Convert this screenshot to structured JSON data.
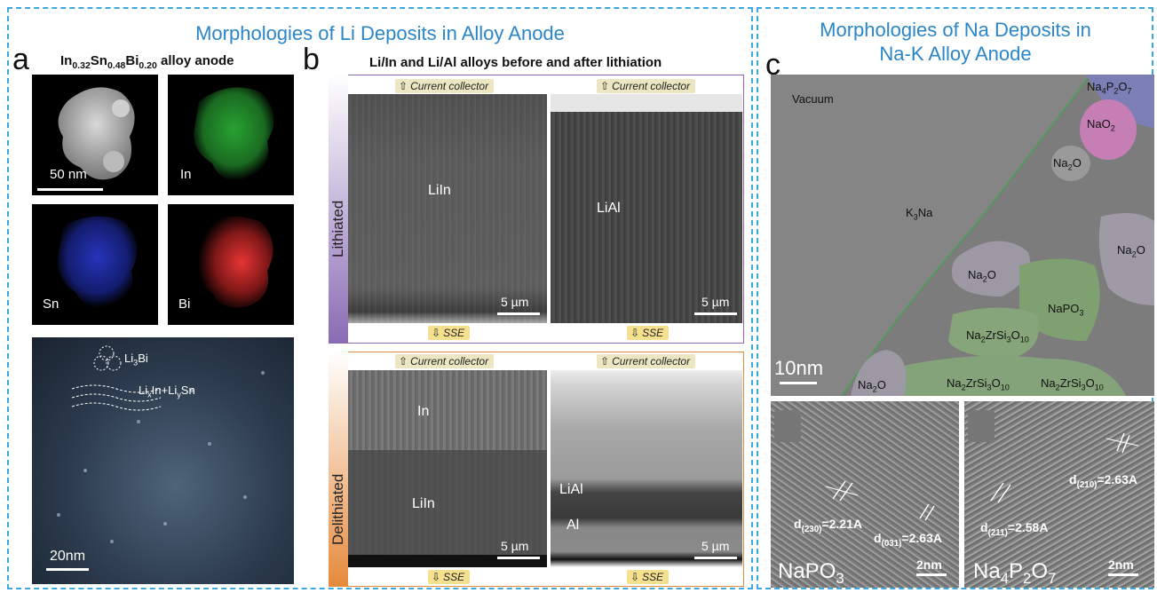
{
  "left_section": {
    "header": "Morphologies of Li Deposits in Alloy Anode"
  },
  "right_section": {
    "header_line1": "Morphologies of Na Deposits in",
    "header_line2": "Na-K Alloy Anode"
  },
  "panel_a": {
    "label": "a",
    "title_parts": [
      "In",
      "0.32",
      "Sn",
      "0.48",
      "Bi",
      "0.20",
      " alloy anode"
    ],
    "tiles": {
      "haadf_scale": "50 nm",
      "in": "In",
      "sn": "Sn",
      "bi": "Bi"
    },
    "hrtem": {
      "li3bi": [
        "Li",
        "3",
        "Bi"
      ],
      "lixin": [
        "Li",
        "x",
        "In+Li",
        "y",
        "Sn"
      ],
      "scale": "20nm"
    },
    "colors": {
      "in": "#2fbf3a",
      "sn": "#2a3ad0",
      "bi": "#d22a2a"
    }
  },
  "panel_b": {
    "label": "b",
    "title": "Li/In and Li/Al alloys before and after lithiation",
    "rows": [
      {
        "side_label": "Lithiated",
        "side_color": "#8a6bb4",
        "top_tag": "Current collector",
        "bottom_tag": "SSE",
        "left_phase": "LiIn",
        "right_phase": "LiAl",
        "scale_left": "5 µm",
        "scale_right": "5 µm"
      },
      {
        "side_label": "Delithiated",
        "side_color": "#e58a3c",
        "top_tag": "Current collector",
        "bottom_tag": "SSE",
        "left_phase_top": "In",
        "left_phase_bottom": "LiIn",
        "right_phase_top": "LiAl",
        "right_phase_bottom": "Al",
        "scale_left": "5 µm",
        "scale_right": "5 µm"
      }
    ]
  },
  "panel_c": {
    "label": "c",
    "regions": {
      "vacuum": "Vacuum",
      "k3na": [
        "K",
        "3",
        "Na"
      ],
      "na4p2o7": [
        "Na",
        "4",
        "P",
        "2",
        "O",
        "7"
      ],
      "nao2": [
        "NaO",
        "2"
      ],
      "na2o": [
        "Na",
        "2",
        "O"
      ],
      "napo3": [
        "NaPO",
        "3"
      ],
      "na2zrsi3o10": [
        "Na",
        "2",
        "ZrSi",
        "3",
        "O",
        "10"
      ]
    },
    "scale_main": "10nm",
    "lattice_left": {
      "d1": [
        "d",
        "(230)",
        "=2.21A"
      ],
      "d2": [
        "d",
        "(031)",
        "=2.63A"
      ],
      "phase": [
        "NaPO",
        "3"
      ],
      "scale": "2nm"
    },
    "lattice_right": {
      "d1": [
        "d",
        "(211)",
        "=2.58A"
      ],
      "d2": [
        "d",
        "(210)",
        "=2.63A"
      ],
      "phase": [
        "Na",
        "4",
        "P",
        "2",
        "O",
        "7"
      ],
      "scale": "2nm"
    }
  }
}
